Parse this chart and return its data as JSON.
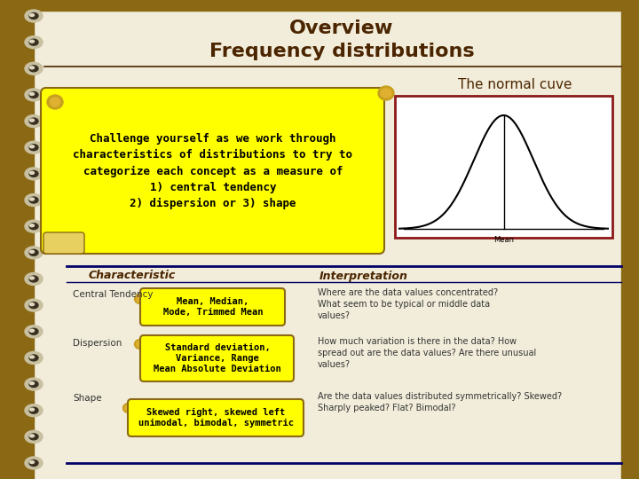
{
  "title_line1": "Overview",
  "title_line2": "Frequency distributions",
  "title_color": "#4B2500",
  "bg_color": "#F2EDDA",
  "sidebar_color": "#8B6914",
  "challenge_text": "Challenge yourself as we work through\ncharacteristics of distributions to try to\ncategorize each concept as a measure of\n1) central tendency\n2) dispersion or 3) shape",
  "normal_cuve_title": "The normal cuve",
  "characteristic_header": "Characteristic",
  "interpretation_header": "Interpretation",
  "rows": [
    {
      "category": "Central Tendency",
      "badge_text": "Mean, Median,\nMode, Trimmed Mean",
      "interpretation": "Where are the data values concentrated?\nWhat seem to be typical or middle data\nvalues?"
    },
    {
      "category": "Dispersion",
      "badge_text": "Standard deviation,\nVariance, Range\nMean Absolute Deviation",
      "interpretation": "How much variation is there in the data? How\nspread out are the data values? Are there unusual\nvalues?"
    },
    {
      "category": "Shape",
      "badge_text": "Skewed right, skewed left\nunimodal, bimodal, symmetric",
      "interpretation": "Are the data values distributed symmetrically? Skewed?\nSharply peaked? Flat? Bimodal?"
    }
  ],
  "yellow_bg": "#FFFF00",
  "badge_border": "#8B6914",
  "dark_red": "#8B1a1a",
  "header_text_color": "#4B2500",
  "body_text_color": "#333333",
  "line_color": "#000066"
}
